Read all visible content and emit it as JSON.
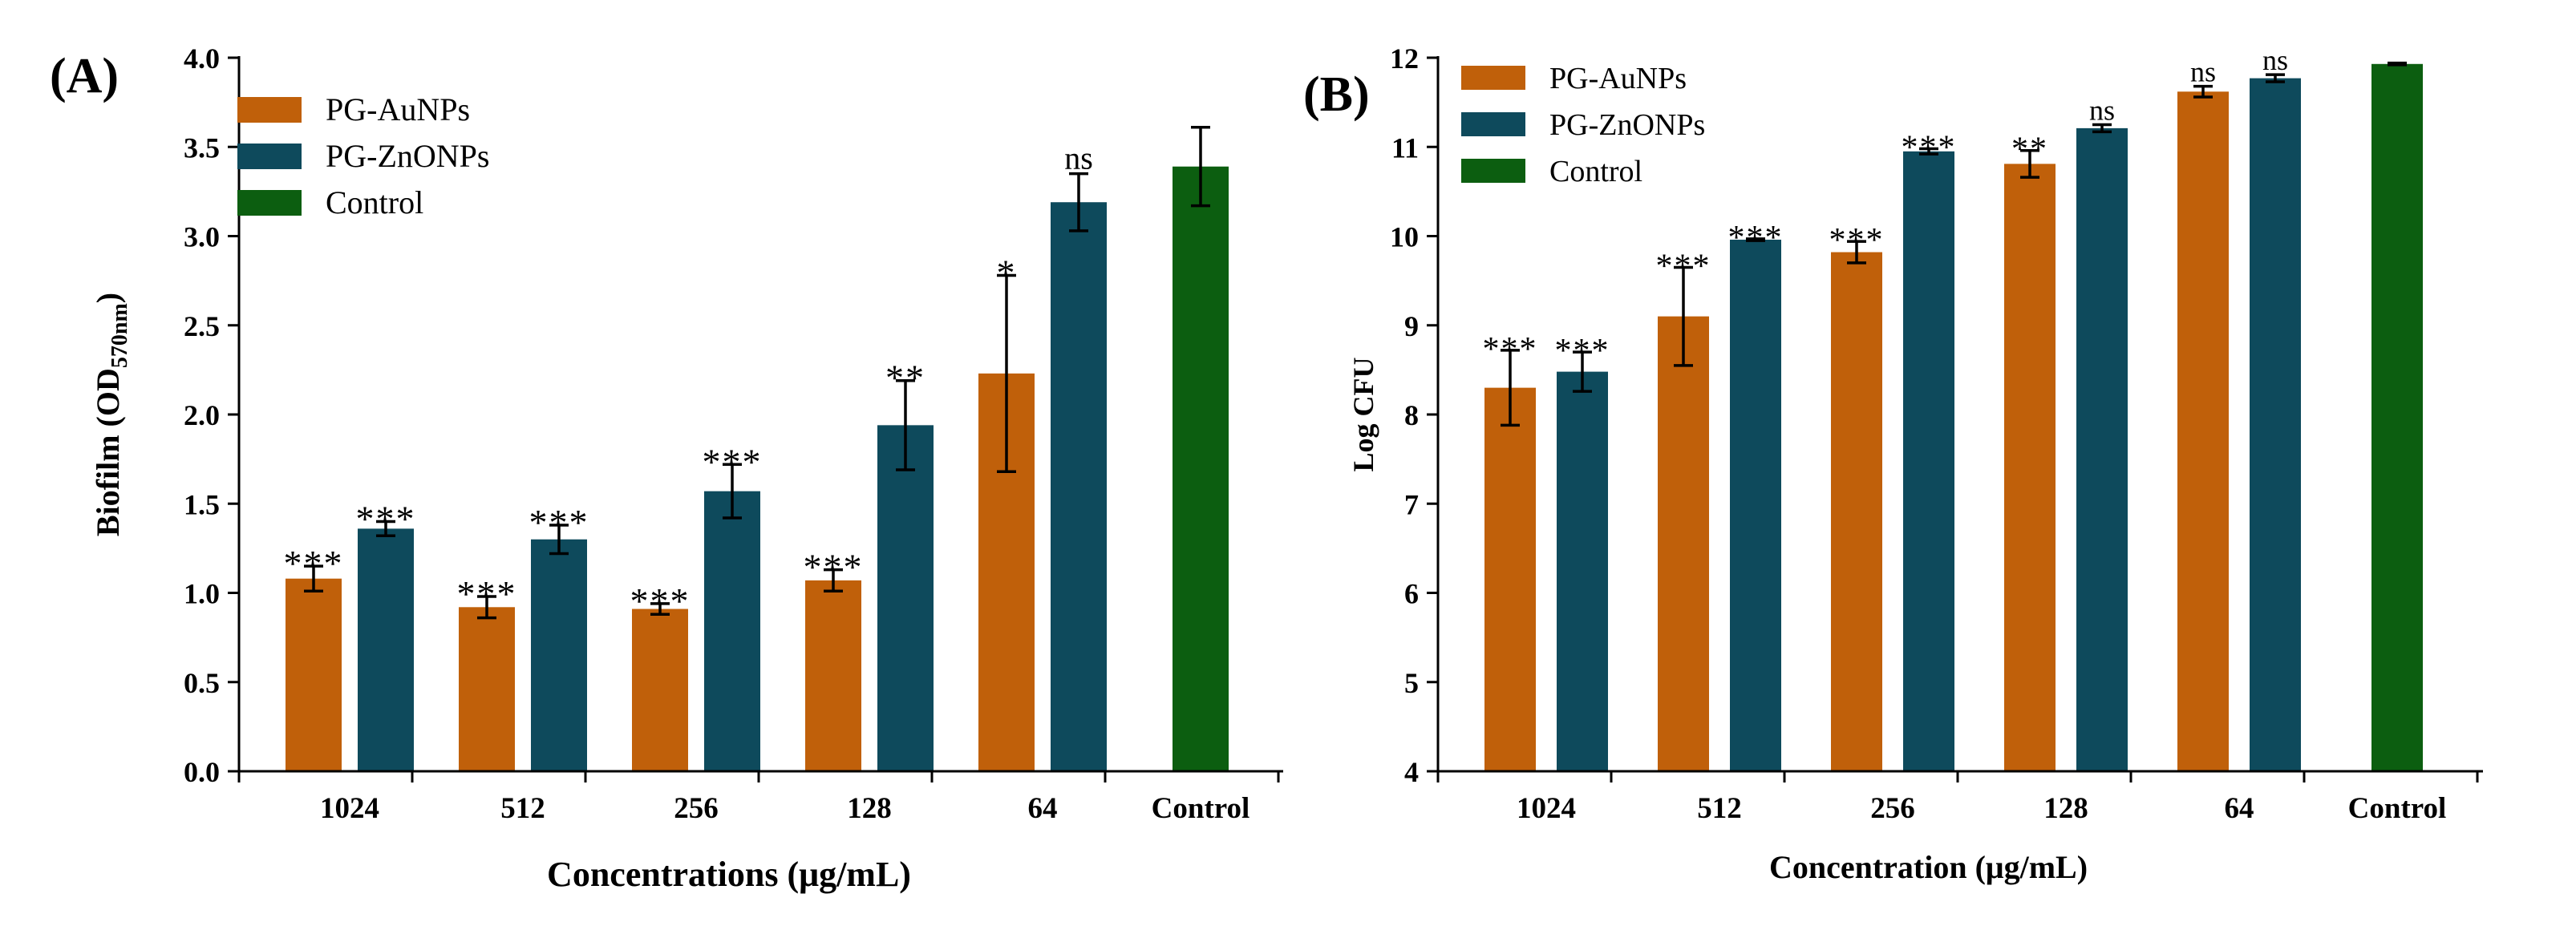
{
  "chart_data": [
    {
      "type": "bar",
      "panel_label": "(A)",
      "categories": [
        "1024",
        "512",
        "256",
        "128",
        "64",
        "Control"
      ],
      "series": [
        {
          "name": "PG-AuNPs",
          "color": "#c0600a",
          "values": [
            1.08,
            0.92,
            0.91,
            1.07,
            2.23,
            null
          ],
          "errors": [
            0.07,
            0.06,
            0.03,
            0.06,
            0.55,
            null
          ],
          "significance": [
            "***",
            "***",
            "***",
            "***",
            "*",
            null
          ]
        },
        {
          "name": "PG-ZnONPs",
          "color": "#0e4a5c",
          "values": [
            1.36,
            1.3,
            1.57,
            1.94,
            3.19,
            null
          ],
          "errors": [
            0.04,
            0.08,
            0.15,
            0.25,
            0.16,
            null
          ],
          "significance": [
            "***",
            "***",
            "***",
            "**",
            "ns",
            null
          ]
        },
        {
          "name": "Control",
          "color": "#0c5e10",
          "values": [
            null,
            null,
            null,
            null,
            null,
            3.39
          ],
          "errors": [
            null,
            null,
            null,
            null,
            null,
            0.22
          ],
          "significance": [
            null,
            null,
            null,
            null,
            null,
            null
          ]
        }
      ],
      "title": "",
      "xlabel": "Concentrations (μg/mL)",
      "ylabel": "Biofilm (OD",
      "ylabel_subscript": "570nm",
      "ylabel_close": ")",
      "ylim": [
        0,
        4.0
      ],
      "yticks": [
        "0.0",
        "0.5",
        "1.0",
        "1.5",
        "2.0",
        "2.5",
        "3.0",
        "3.5",
        "4.0"
      ],
      "legend": [
        "PG-AuNPs",
        "PG-ZnONPs",
        "Control"
      ],
      "legend_position": "top-left",
      "grid": false
    },
    {
      "type": "bar",
      "panel_label": "(B)",
      "categories": [
        "1024",
        "512",
        "256",
        "128",
        "64",
        "Control"
      ],
      "series": [
        {
          "name": "PG-AuNPs",
          "color": "#c0600a",
          "values": [
            8.3,
            9.1,
            9.82,
            10.81,
            11.62,
            null
          ],
          "errors": [
            0.42,
            0.55,
            0.12,
            0.15,
            0.06,
            null
          ],
          "significance": [
            "***",
            "***",
            "***",
            "**",
            "ns",
            null
          ]
        },
        {
          "name": "PG-ZnONPs",
          "color": "#0e4a5c",
          "values": [
            8.48,
            9.96,
            10.95,
            11.21,
            11.77,
            null
          ],
          "errors": [
            0.22,
            0.01,
            0.03,
            0.04,
            0.04,
            null
          ],
          "significance": [
            "***",
            "***",
            "***",
            "ns",
            "ns",
            null
          ]
        },
        {
          "name": "Control",
          "color": "#0c5e10",
          "values": [
            null,
            null,
            null,
            null,
            null,
            11.93
          ],
          "errors": [
            null,
            null,
            null,
            null,
            null,
            0.01
          ],
          "significance": [
            null,
            null,
            null,
            null,
            null,
            null
          ]
        }
      ],
      "title": "",
      "xlabel": "Concentration (μg/mL)",
      "ylabel": "Log CFU",
      "ylim": [
        4,
        12
      ],
      "yticks": [
        "4",
        "5",
        "6",
        "7",
        "8",
        "9",
        "10",
        "11",
        "12"
      ],
      "legend": [
        "PG-AuNPs",
        "PG-ZnONPs",
        "Control"
      ],
      "legend_position": "top-left",
      "grid": false
    }
  ]
}
